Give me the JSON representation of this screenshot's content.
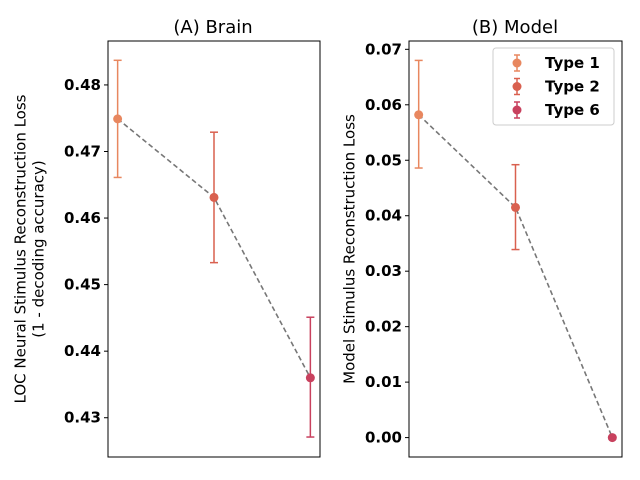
{
  "chart_data": [
    {
      "type": "scatter",
      "title": "(A) Brain",
      "ylabel": [
        "LOC Neural Stimulus Reconstruction Loss",
        "(1 - decoding accuracy)"
      ],
      "xlabel": "",
      "ylim": [
        0.4241,
        0.4866
      ],
      "yticks": [
        0.43,
        0.44,
        0.45,
        0.46,
        0.47,
        0.48
      ],
      "ytick_labels": [
        "0.43",
        "0.44",
        "0.45",
        "0.46",
        "0.47",
        "0.48"
      ],
      "grid": false,
      "trend_line": "dashed",
      "series": [
        {
          "name": "Type 1",
          "x": 1,
          "y": 0.4749,
          "err_low": 0.4661,
          "err_high": 0.4837,
          "color": "#E8875F"
        },
        {
          "name": "Type 2",
          "x": 2,
          "y": 0.4631,
          "err_low": 0.4533,
          "err_high": 0.4729,
          "color": "#D9604F"
        },
        {
          "name": "Type 6",
          "x": 3,
          "y": 0.436,
          "err_low": 0.4271,
          "err_high": 0.4451,
          "color": "#C8415E"
        }
      ]
    },
    {
      "type": "scatter",
      "title": "(B) Model",
      "ylabel": [
        "Model Stimulus Reconstruction Loss"
      ],
      "xlabel": "",
      "ylim": [
        -0.0035,
        0.0715
      ],
      "yticks": [
        0.0,
        0.01,
        0.02,
        0.03,
        0.04,
        0.05,
        0.06,
        0.07
      ],
      "ytick_labels": [
        "0.00",
        "0.01",
        "0.02",
        "0.03",
        "0.04",
        "0.05",
        "0.06",
        "0.07"
      ],
      "grid": false,
      "trend_line": "dashed",
      "legend": "top-right",
      "series": [
        {
          "name": "Type 1",
          "x": 1,
          "y": 0.0582,
          "err_low": 0.0486,
          "err_high": 0.068,
          "color": "#E8875F"
        },
        {
          "name": "Type 2",
          "x": 2,
          "y": 0.0415,
          "err_low": 0.0339,
          "err_high": 0.0492,
          "color": "#D9604F"
        },
        {
          "name": "Type 6",
          "x": 3,
          "y": 0.0,
          "err_low": 0.0,
          "err_high": 0.0,
          "color": "#C8415E"
        }
      ]
    }
  ]
}
